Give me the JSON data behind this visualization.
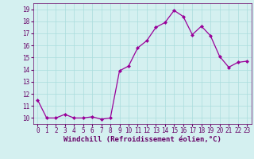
{
  "x": [
    0,
    1,
    2,
    3,
    4,
    5,
    6,
    7,
    8,
    9,
    10,
    11,
    12,
    13,
    14,
    15,
    16,
    17,
    18,
    19,
    20,
    21,
    22,
    23
  ],
  "y": [
    11.5,
    10.0,
    10.0,
    10.3,
    10.0,
    10.0,
    10.1,
    9.9,
    10.0,
    13.9,
    14.3,
    15.8,
    16.4,
    17.5,
    17.9,
    18.9,
    18.4,
    16.9,
    17.6,
    16.8,
    15.1,
    14.2,
    14.6,
    14.7
  ],
  "line_color": "#990099",
  "marker": "D",
  "marker_size": 2,
  "bg_color": "#d4f0f0",
  "grid_color": "#aadddd",
  "xlabel": "Windchill (Refroidissement éolien,°C)",
  "ylim": [
    9.5,
    19.5
  ],
  "xlim": [
    -0.5,
    23.5
  ],
  "yticks": [
    10,
    11,
    12,
    13,
    14,
    15,
    16,
    17,
    18,
    19
  ],
  "xticks": [
    0,
    1,
    2,
    3,
    4,
    5,
    6,
    7,
    8,
    9,
    10,
    11,
    12,
    13,
    14,
    15,
    16,
    17,
    18,
    19,
    20,
    21,
    22,
    23
  ],
  "tick_fontsize": 5.5,
  "xlabel_fontsize": 6.5
}
